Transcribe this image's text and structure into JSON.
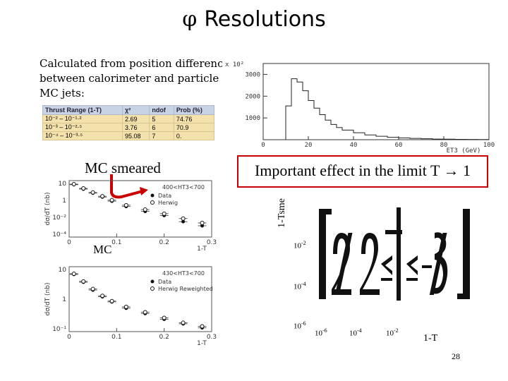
{
  "title": {
    "symbol": "φ",
    "text": "Resolutions"
  },
  "description": "Calculated from position difference between calorimeter and particle MC jets:",
  "fit_table": {
    "headers": [
      "Thrust Range (1-T)",
      "χ²",
      "ndof",
      "Prob (%)"
    ],
    "rows": [
      [
        "10⁻² – 10⁻¹·²",
        "2.69",
        "5",
        "74.76"
      ],
      [
        "10⁻³ – 10⁻²·⁵",
        "3.76",
        "6",
        "70.9"
      ],
      [
        "10⁻⁴ – 10⁻³·⁵",
        "95.08",
        "7",
        "0."
      ]
    ]
  },
  "labels": {
    "mc_smeared": "MC smeared",
    "mc": "MC",
    "important_effect": "Important effect in the limit T → 1",
    "tsme": "1-Tsme",
    "right_xlabel": "1-T",
    "page_number": "28"
  },
  "right_axis": {
    "y_ticks": [
      {
        "base": "10",
        "exp": "-2"
      },
      {
        "base": "10",
        "exp": "-4"
      },
      {
        "base": "10",
        "exp": "-6"
      }
    ],
    "x_ticks": [
      {
        "base": "10",
        "exp": "-6"
      },
      {
        "base": "10",
        "exp": "-4"
      },
      {
        "base": "10",
        "exp": "-2"
      }
    ]
  },
  "chart_data": [
    {
      "type": "bar",
      "xlabel": "ET3 (GeV)",
      "ylabel_scale": "x 10²",
      "x_ticks": [
        "0",
        "20",
        "40",
        "60",
        "80",
        "100"
      ],
      "y_ticks": [
        "1000",
        "2000",
        "3000"
      ],
      "xlim": [
        0,
        100
      ],
      "ylim": [
        0,
        3500
      ],
      "x": [
        10,
        12.5,
        15,
        17.5,
        20,
        22.5,
        25,
        27.5,
        30,
        32.5,
        35,
        40,
        45,
        50,
        55,
        60,
        65,
        70,
        75,
        80,
        85,
        90,
        95
      ],
      "values": [
        1550,
        2800,
        2650,
        2250,
        1800,
        1450,
        1150,
        900,
        700,
        560,
        440,
        320,
        220,
        160,
        110,
        80,
        60,
        45,
        30,
        25,
        18,
        12,
        8
      ]
    },
    {
      "type": "scatter",
      "ylabel": "dσ/dT (nb)",
      "xlabel": "1-T",
      "annotation": "400<HT3<700",
      "legend": [
        "Data",
        "Herwig"
      ],
      "x_ticks": [
        "0",
        "0.1",
        "0.2",
        "0.3"
      ],
      "y_ticks": [
        "10",
        "1",
        "10⁻²",
        "10⁻⁴"
      ],
      "series": [
        {
          "name": "Data",
          "x": [
            0.01,
            0.03,
            0.05,
            0.07,
            0.09,
            0.12,
            0.16,
            0.2,
            0.24,
            0.28
          ],
          "values": [
            8,
            3,
            1.2,
            0.5,
            0.2,
            0.06,
            0.02,
            0.008,
            0.002,
            0.0008
          ]
        },
        {
          "name": "Herwig",
          "x": [
            0.01,
            0.03,
            0.05,
            0.07,
            0.09,
            0.12,
            0.16,
            0.2,
            0.24,
            0.28
          ],
          "values": [
            9,
            3.5,
            1.4,
            0.6,
            0.25,
            0.08,
            0.03,
            0.012,
            0.004,
            0.0015
          ]
        }
      ]
    },
    {
      "type": "scatter",
      "ylabel": "dσ/dT (nb)",
      "xlabel": "1-T",
      "annotation": "430<HT3<700",
      "legend": [
        "Data",
        "Herwig Reweighted"
      ],
      "x_ticks": [
        "0",
        "0.1",
        "0.2",
        "0.3"
      ],
      "y_ticks": [
        "10",
        "1",
        "10⁻¹"
      ],
      "series": [
        {
          "name": "Data",
          "x": [
            0.01,
            0.03,
            0.05,
            0.07,
            0.09,
            0.12,
            0.16,
            0.2,
            0.24,
            0.28
          ],
          "values": [
            8,
            4,
            2,
            1.1,
            0.7,
            0.4,
            0.25,
            0.15,
            0.1,
            0.07
          ]
        },
        {
          "name": "Herwig Reweighted",
          "x": [
            0.01,
            0.03,
            0.05,
            0.07,
            0.09,
            0.12,
            0.16,
            0.2,
            0.24,
            0.28
          ],
          "values": [
            8.5,
            4.3,
            2.2,
            1.2,
            0.75,
            0.45,
            0.28,
            0.17,
            0.11,
            0.08
          ]
        }
      ]
    }
  ]
}
